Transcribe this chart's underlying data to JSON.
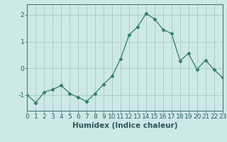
{
  "x": [
    0,
    1,
    2,
    3,
    4,
    5,
    6,
    7,
    8,
    9,
    10,
    11,
    12,
    13,
    14,
    15,
    16,
    17,
    18,
    19,
    20,
    21,
    22,
    23
  ],
  "y": [
    -1.0,
    -1.3,
    -0.9,
    -0.8,
    -0.65,
    -0.95,
    -1.1,
    -1.25,
    -0.95,
    -0.6,
    -0.3,
    0.35,
    1.25,
    1.55,
    2.05,
    1.85,
    1.45,
    1.3,
    0.28,
    0.55,
    -0.05,
    0.3,
    -0.05,
    -0.35
  ],
  "line_color": "#2e7d6e",
  "marker": "D",
  "marker_size": 2.5,
  "bg_color": "#cce8e8",
  "grid_color": "#aac8c8",
  "xlabel": "Humidex (Indice chaleur)",
  "xlim": [
    0,
    23
  ],
  "ylim": [
    -1.6,
    2.4
  ],
  "yticks": [
    -1,
    0,
    1,
    2
  ],
  "xticks": [
    0,
    1,
    2,
    3,
    4,
    5,
    6,
    7,
    8,
    9,
    10,
    11,
    12,
    13,
    14,
    15,
    16,
    17,
    18,
    19,
    20,
    21,
    22,
    23
  ],
  "tick_color": "#2e6060",
  "axis_color": "#4a7a7a",
  "font_color": "#2e5555",
  "xlabel_fontsize": 7.5,
  "tick_fontsize": 6.5
}
